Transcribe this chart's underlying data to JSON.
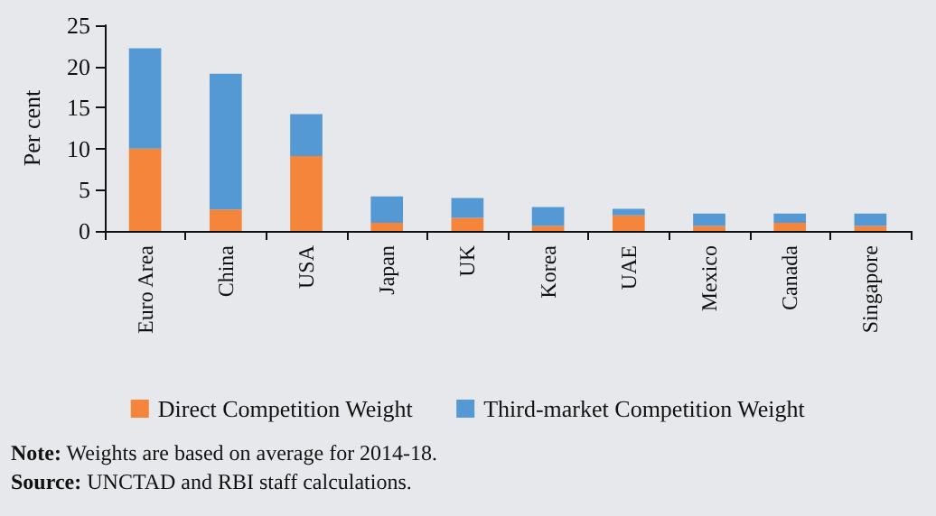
{
  "chart_data": {
    "type": "bar",
    "stacked": true,
    "ylabel": "Per cent",
    "categories": [
      "Euro Area",
      "China",
      "USA",
      "Japan",
      "UK",
      "Korea",
      "UAE",
      "Mexico",
      "Canada",
      "Singapore"
    ],
    "series": [
      {
        "name": "Direct Competition Weight",
        "color": "#f4853a",
        "values": [
          10,
          2.6,
          9.1,
          1.0,
          1.6,
          0.6,
          1.9,
          0.6,
          1.0,
          0.6
        ]
      },
      {
        "name": "Third-market Competition Weight",
        "color": "#5499d3",
        "values": [
          12.2,
          16.5,
          5.1,
          3.2,
          2.4,
          2.3,
          0.8,
          1.5,
          1.1,
          1.5
        ]
      }
    ],
    "ylim": [
      0,
      25
    ],
    "yticks": [
      0,
      5,
      10,
      15,
      20,
      25
    ],
    "grid": false,
    "legend": "bottom",
    "annotations": [
      "Note: Weights are based on average for 2014-18.",
      "Source: UNCTAD and RBI staff calculations."
    ]
  }
}
